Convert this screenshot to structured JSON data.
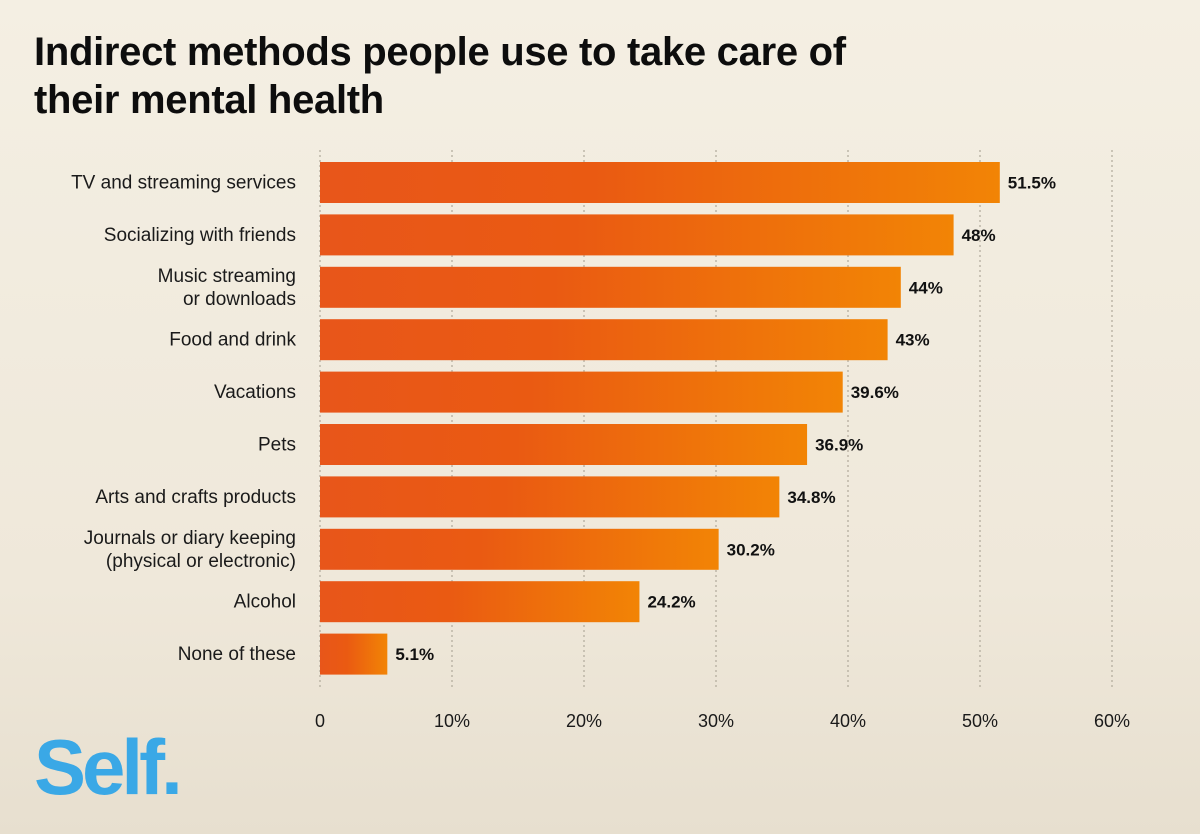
{
  "title": "Indirect methods people use to take care of their mental health",
  "logo": {
    "text": "Self",
    "dot": ".",
    "color": "#3aa8e6"
  },
  "colors": {
    "bar_start": "#e8561a",
    "bar_end": "#f28405",
    "grid": "#b9b2a4"
  },
  "chart_data": {
    "type": "bar",
    "orientation": "horizontal",
    "categories": [
      [
        "TV and streaming services"
      ],
      [
        "Socializing with friends"
      ],
      [
        "Music streaming",
        "or downloads"
      ],
      [
        "Food and drink"
      ],
      [
        "Vacations"
      ],
      [
        "Pets"
      ],
      [
        "Arts and crafts products"
      ],
      [
        "Journals or diary keeping",
        "(physical or electronic)"
      ],
      [
        "Alcohol"
      ],
      [
        "None of these"
      ]
    ],
    "values": [
      51.5,
      48,
      44,
      43,
      39.6,
      36.9,
      34.8,
      30.2,
      24.2,
      5.1
    ],
    "data_labels": [
      "51.5%",
      "48%",
      "44%",
      "43%",
      "39.6%",
      "36.9%",
      "34.8%",
      "30.2%",
      "24.2%",
      "5.1%"
    ],
    "xlim": [
      0,
      60
    ],
    "xticks": [
      0,
      10,
      20,
      30,
      40,
      50,
      60
    ],
    "xtick_labels": [
      "0",
      "10%",
      "20%",
      "30%",
      "40%",
      "50%",
      "60%"
    ],
    "grid": true,
    "legend": false
  }
}
